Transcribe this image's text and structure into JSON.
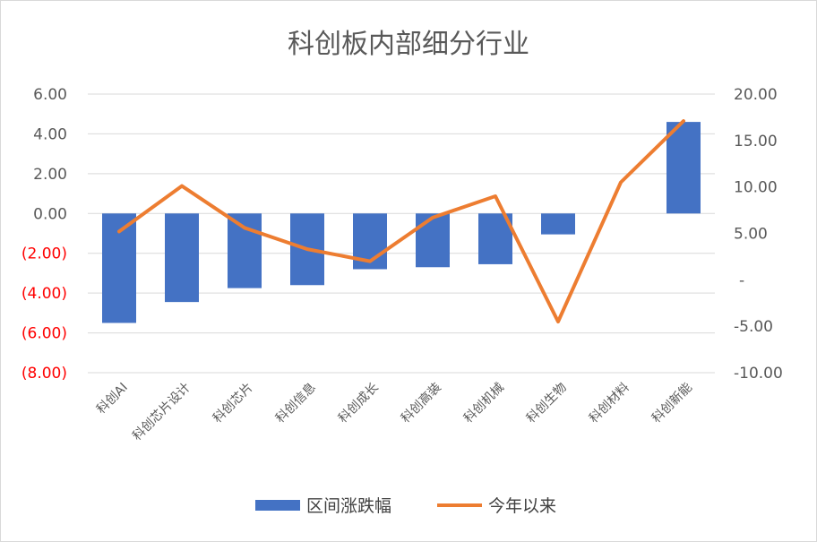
{
  "chart_data": {
    "type": "bar+line",
    "title": "科创板内部细分行业",
    "categories": [
      "科创AI",
      "科创芯片设计",
      "科创芯片",
      "科创信息",
      "科创成长",
      "科创高装",
      "科创机械",
      "科创生物",
      "科创材料",
      "科创新能"
    ],
    "series": [
      {
        "name": "区间涨跌幅",
        "type": "bar",
        "axis": "left",
        "color": "#4472c4",
        "values": [
          -5.5,
          -4.45,
          -3.75,
          -3.6,
          -2.8,
          -2.7,
          -2.55,
          -1.05,
          0,
          4.6
        ]
      },
      {
        "name": "今年以来",
        "type": "line",
        "axis": "right",
        "color": "#ed7d31",
        "values": [
          5.2,
          10.1,
          5.6,
          3.3,
          2.0,
          6.7,
          9.0,
          -4.5,
          10.5,
          17.1
        ]
      }
    ],
    "y_left": {
      "min": -8,
      "max": 6,
      "step": 2,
      "tick_labels": [
        "6.00",
        "4.00",
        "2.00",
        "0.00",
        "(2.00)",
        "(4.00)",
        "(6.00)",
        "(8.00)"
      ],
      "negative_color": "#ff0000"
    },
    "y_right": {
      "min": -10,
      "max": 20,
      "step": 5,
      "tick_labels": [
        "20.00",
        "15.00",
        "10.00",
        "5.00",
        "-",
        "-5.00",
        "-10.00"
      ]
    },
    "grid": true,
    "legend_position": "bottom"
  }
}
